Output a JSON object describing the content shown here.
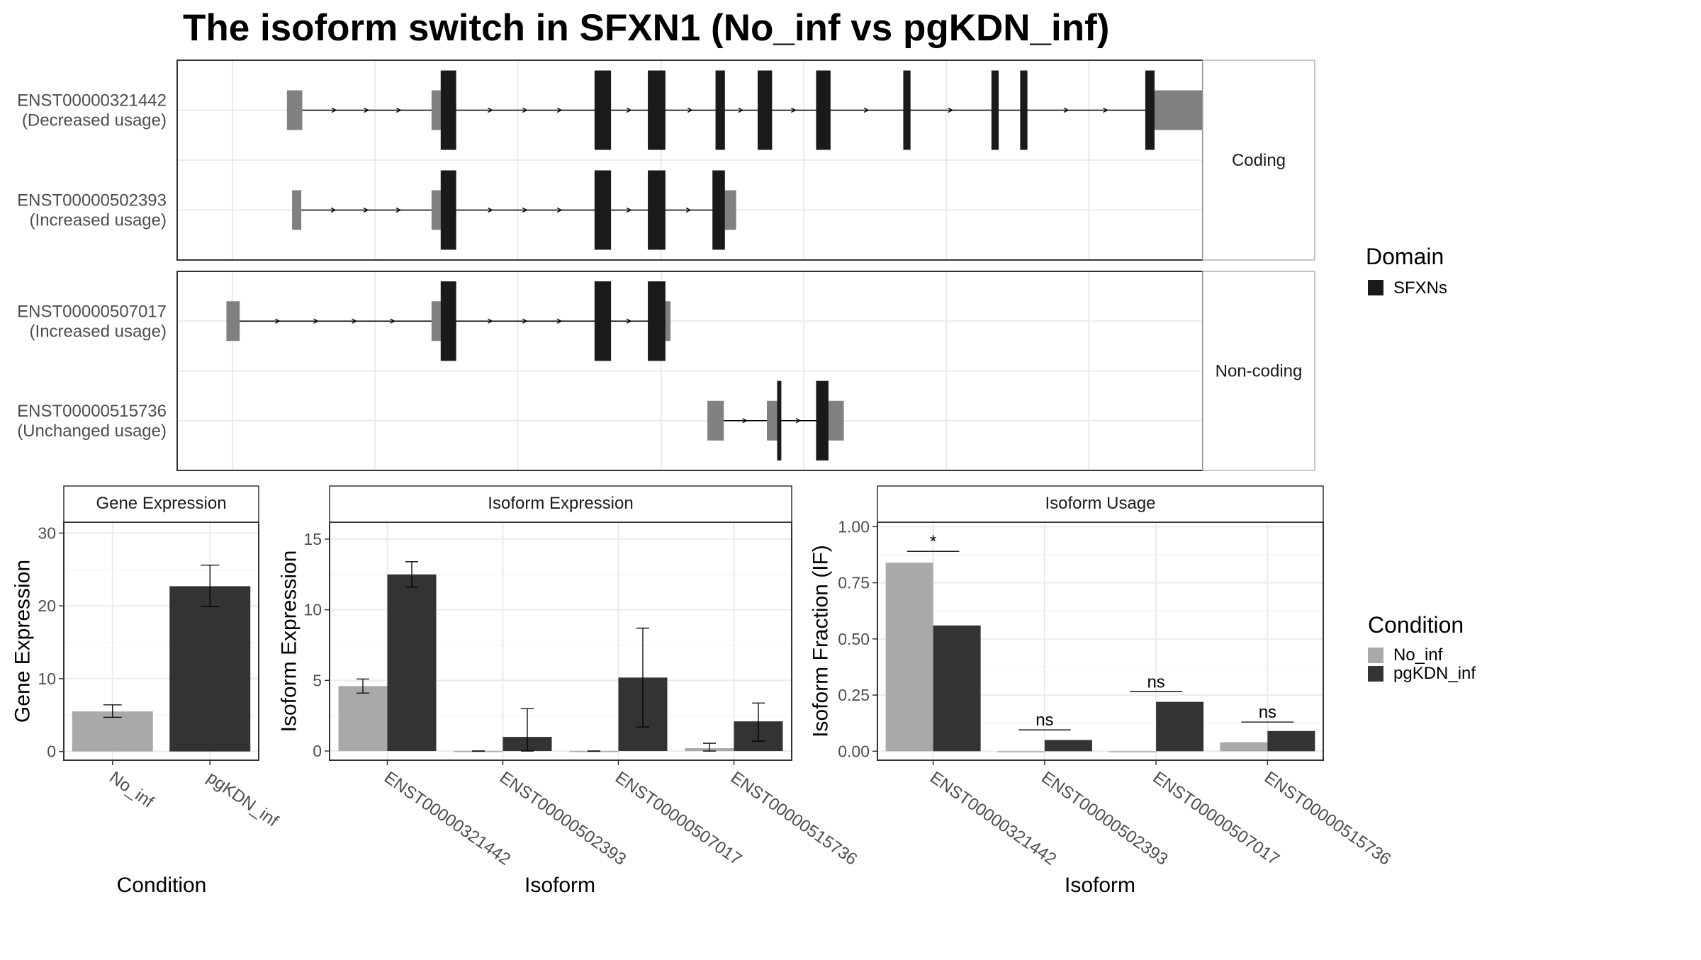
{
  "title": "The isoform switch in SFXN1 (No_inf vs pgKDN_inf)",
  "colors": {
    "exon_utr": "#808080",
    "exon_cds": "#1a1a1a",
    "no_inf": "#a9a9a9",
    "pgkdn_inf": "#333333",
    "grid": "#ebebeb",
    "strip_text": "#1a1a1a",
    "axis_text": "#4d4d4d"
  },
  "transcripts": {
    "groups": [
      {
        "label": "Coding",
        "isoforms": [
          {
            "id": "ENST00000321442",
            "usage": "(Decreased usage)",
            "utr": [
              [
                0.107,
                0.122
              ],
              [
                0.248,
                0.257
              ],
              [
                0.953,
                1.038
              ]
            ],
            "cds": [
              [
                0.257,
                0.272
              ],
              [
                0.407,
                0.423
              ],
              [
                0.459,
                0.476
              ],
              [
                0.525,
                0.534
              ],
              [
                0.566,
                0.58
              ],
              [
                0.623,
                0.637
              ],
              [
                0.708,
                0.715
              ],
              [
                0.794,
                0.801
              ],
              [
                0.822,
                0.829
              ],
              [
                0.944,
                0.953
              ]
            ],
            "domain": [
              [
                0.257,
                0.272
              ],
              [
                0.407,
                0.423
              ],
              [
                0.459,
                0.476
              ],
              [
                0.525,
                0.534
              ],
              [
                0.566,
                0.58
              ],
              [
                0.623,
                0.637
              ],
              [
                0.708,
                0.715
              ],
              [
                0.794,
                0.801
              ],
              [
                0.822,
                0.829
              ],
              [
                0.944,
                0.953
              ]
            ]
          },
          {
            "id": "ENST00000502393",
            "usage": "(Increased usage)",
            "utr": [
              [
                0.112,
                0.121
              ],
              [
                0.248,
                0.257
              ],
              [
                0.534,
                0.545
              ]
            ],
            "cds": [
              [
                0.257,
                0.272
              ],
              [
                0.407,
                0.423
              ],
              [
                0.459,
                0.476
              ],
              [
                0.522,
                0.534
              ]
            ],
            "domain": [
              [
                0.257,
                0.272
              ],
              [
                0.407,
                0.423
              ],
              [
                0.459,
                0.476
              ],
              [
                0.522,
                0.534
              ]
            ]
          }
        ]
      },
      {
        "label": "Non-coding",
        "isoforms": [
          {
            "id": "ENST00000507017",
            "usage": "(Increased usage)",
            "utr": [
              [
                0.048,
                0.061
              ],
              [
                0.248,
                0.257
              ],
              [
                0.476,
                0.481
              ]
            ],
            "cds": [
              [
                0.257,
                0.272
              ],
              [
                0.407,
                0.423
              ],
              [
                0.459,
                0.476
              ]
            ],
            "domain": [
              [
                0.257,
                0.272
              ],
              [
                0.407,
                0.423
              ],
              [
                0.459,
                0.476
              ]
            ]
          },
          {
            "id": "ENST00000515736",
            "usage": "(Unchanged usage)",
            "utr": [
              [
                0.517,
                0.533
              ],
              [
                0.575,
                0.585
              ],
              [
                0.635,
                0.65
              ]
            ],
            "cds": [
              [
                0.585,
                0.589
              ],
              [
                0.623,
                0.635
              ]
            ],
            "domain": [
              [
                0.585,
                0.589
              ],
              [
                0.623,
                0.635
              ]
            ]
          }
        ]
      }
    ],
    "domain_legend": {
      "title": "Domain",
      "items": [
        "SFXNs"
      ]
    }
  },
  "condition_legend": {
    "title": "Condition",
    "items": [
      "No_inf",
      "pgKDN_inf"
    ]
  },
  "chart_data": [
    {
      "type": "bar",
      "strip_title": "Gene Expression",
      "xlabel": "Condition",
      "ylabel": "Gene Expression",
      "ylim": [
        -1.2,
        31.5
      ],
      "yticks": [
        0,
        10,
        20,
        30
      ],
      "ytick_labels": [
        "0",
        "10",
        "20",
        "30"
      ],
      "categories": [
        "No_inf",
        "pgKDN_inf"
      ],
      "values": [
        5.5,
        22.7
      ],
      "errors": [
        [
          4.7,
          6.4
        ],
        [
          19.9,
          25.6
        ]
      ]
    },
    {
      "type": "bar",
      "strip_title": "Isoform Expression",
      "xlabel": "Isoform",
      "ylabel": "Isoform Expression",
      "ylim": [
        -0.65,
        16.2
      ],
      "yticks": [
        0,
        5,
        10,
        15
      ],
      "ytick_labels": [
        "0",
        "5",
        "10",
        "15"
      ],
      "categories": [
        "ENST00000321442",
        "ENST00000502393",
        "ENST00000507017",
        "ENST00000515736"
      ],
      "series": [
        {
          "name": "No_inf",
          "values": [
            4.6,
            0.0,
            0.0,
            0.2
          ],
          "errors": [
            [
              4.1,
              5.1
            ],
            [
              0,
              0
            ],
            [
              0,
              0
            ],
            [
              0.0,
              0.55
            ]
          ]
        },
        {
          "name": "pgKDN_inf",
          "values": [
            12.5,
            1.0,
            5.2,
            2.1
          ],
          "errors": [
            [
              11.6,
              13.4
            ],
            [
              0.0,
              3.0
            ],
            [
              1.7,
              8.7
            ],
            [
              0.7,
              3.4
            ]
          ]
        }
      ]
    },
    {
      "type": "bar",
      "strip_title": "Isoform Usage",
      "xlabel": "Isoform",
      "ylabel": "Isoform Fraction (IF)",
      "ylim": [
        -0.04,
        1.02
      ],
      "yticks": [
        0,
        0.25,
        0.5,
        0.75,
        1.0
      ],
      "ytick_labels": [
        "0.00",
        "0.25",
        "0.50",
        "0.75",
        "1.00"
      ],
      "categories": [
        "ENST00000321442",
        "ENST00000502393",
        "ENST00000507017",
        "ENST00000515736"
      ],
      "series": [
        {
          "name": "No_inf",
          "values": [
            0.84,
            0.0,
            0.0,
            0.04
          ]
        },
        {
          "name": "pgKDN_inf",
          "values": [
            0.56,
            0.05,
            0.22,
            0.09
          ]
        }
      ],
      "significance": [
        "*",
        "ns",
        "ns",
        "ns"
      ],
      "significance_y": [
        0.89,
        0.095,
        0.265,
        0.13
      ]
    }
  ]
}
